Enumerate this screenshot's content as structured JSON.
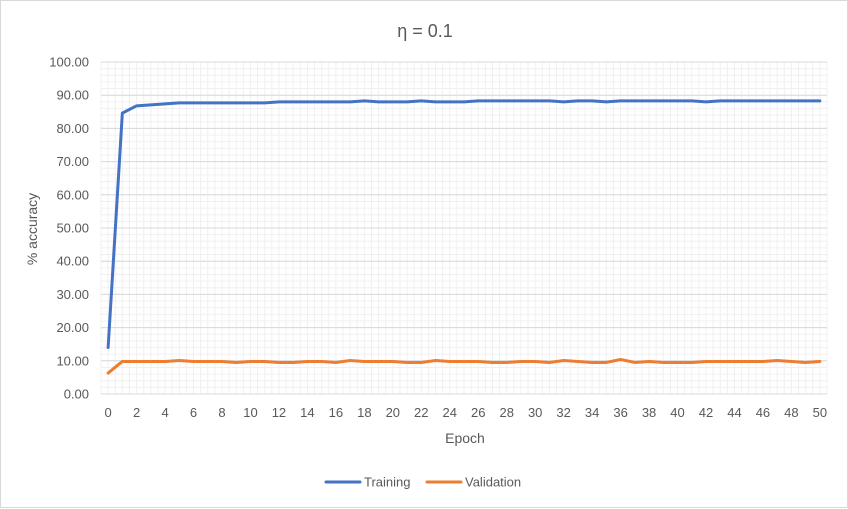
{
  "chart_data": {
    "type": "line",
    "title": "η = 0.1",
    "xlabel": "Epoch",
    "ylabel": "% accuracy",
    "xlim": [
      0,
      50
    ],
    "ylim": [
      0,
      100
    ],
    "y_tick_step": 10,
    "y_tick_decimals": 2,
    "x_tick_labels": [
      "0",
      "2",
      "4",
      "6",
      "8",
      "10",
      "12",
      "14",
      "16",
      "18",
      "20",
      "22",
      "24",
      "26",
      "28",
      "30",
      "32",
      "34",
      "36",
      "38",
      "40",
      "42",
      "44",
      "46",
      "48",
      "50"
    ],
    "grid": true,
    "legend_position": "bottom",
    "x": [
      0,
      1,
      2,
      3,
      4,
      5,
      6,
      7,
      8,
      9,
      10,
      11,
      12,
      13,
      14,
      15,
      16,
      17,
      18,
      19,
      20,
      21,
      22,
      23,
      24,
      25,
      26,
      27,
      28,
      29,
      30,
      31,
      32,
      33,
      34,
      35,
      36,
      37,
      38,
      39,
      40,
      41,
      42,
      43,
      44,
      45,
      46,
      47,
      48,
      49,
      50
    ],
    "series": [
      {
        "name": "Training",
        "color": "#4472c4",
        "values": [
          14.0,
          84.6,
          86.8,
          87.1,
          87.4,
          87.7,
          87.7,
          87.7,
          87.7,
          87.7,
          87.7,
          87.7,
          88.0,
          88.0,
          88.0,
          88.0,
          88.0,
          88.0,
          88.3,
          88.0,
          88.0,
          88.0,
          88.3,
          88.0,
          88.0,
          88.0,
          88.3,
          88.3,
          88.3,
          88.3,
          88.3,
          88.3,
          88.0,
          88.3,
          88.3,
          88.0,
          88.3,
          88.3,
          88.3,
          88.3,
          88.3,
          88.3,
          88.0,
          88.3,
          88.3,
          88.3,
          88.3,
          88.3,
          88.3,
          88.3,
          88.3
        ]
      },
      {
        "name": "Validation",
        "color": "#ed7d31",
        "values": [
          6.3,
          9.8,
          9.8,
          9.8,
          9.8,
          10.1,
          9.8,
          9.8,
          9.8,
          9.5,
          9.8,
          9.8,
          9.5,
          9.5,
          9.8,
          9.8,
          9.5,
          10.1,
          9.8,
          9.8,
          9.8,
          9.5,
          9.5,
          10.1,
          9.8,
          9.8,
          9.8,
          9.5,
          9.5,
          9.8,
          9.8,
          9.5,
          10.1,
          9.8,
          9.5,
          9.5,
          10.4,
          9.5,
          9.8,
          9.5,
          9.5,
          9.5,
          9.8,
          9.8,
          9.8,
          9.8,
          9.8,
          10.1,
          9.8,
          9.5,
          9.8
        ]
      }
    ]
  }
}
